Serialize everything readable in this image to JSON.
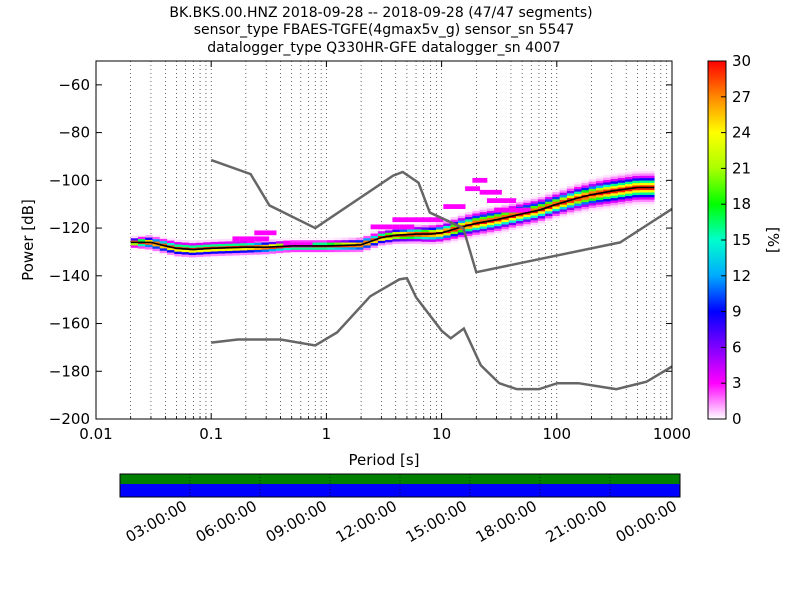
{
  "title_lines": [
    "BK.BKS.00.HNZ   2018-09-28 -- 2018-09-28  (47/47 segments)",
    "sensor_type FBAES-TGFE(4gmax5v_g) sensor_sn 5547",
    "datalogger_type Q330HR-GFE datalogger_sn 4007"
  ],
  "chart_data": {
    "type": "heatmap",
    "xlabel": "Period [s]",
    "ylabel": "Power [dB]",
    "xscale": "log",
    "xlim": [
      0.01,
      1000
    ],
    "ylim": [
      -200,
      -50
    ],
    "x_ticks": [
      0.01,
      0.1,
      1,
      10,
      100,
      1000
    ],
    "x_tick_labels": [
      "0.01",
      "0.1",
      "1",
      "10",
      "100",
      "1000"
    ],
    "y_ticks": [
      -200,
      -180,
      -160,
      -140,
      -120,
      -100,
      -80,
      -60
    ],
    "y_tick_labels": [
      "−200",
      "−180",
      "−160",
      "−140",
      "−120",
      "−100",
      "−80",
      "−60"
    ],
    "grid": "dotted-x",
    "colorbar": {
      "label": "[%]",
      "min": 0,
      "max": 30,
      "ticks": [
        0,
        3,
        6,
        9,
        12,
        15,
        18,
        21,
        24,
        27,
        30
      ],
      "tick_labels": [
        "0",
        "3",
        "6",
        "9",
        "12",
        "15",
        "18",
        "21",
        "24",
        "27",
        "30"
      ],
      "colors": [
        "#ffffff",
        "#ff00ff",
        "#8000ff",
        "#0000ff",
        "#00aaff",
        "#00ffcc",
        "#00ff00",
        "#aaff00",
        "#ffff00",
        "#ff8800",
        "#ff0000"
      ]
    },
    "noise_model_high": [
      [
        0.1,
        -91.5
      ],
      [
        0.22,
        -97.4
      ],
      [
        0.32,
        -110.5
      ],
      [
        0.8,
        -120
      ],
      [
        3.8,
        -98
      ],
      [
        4.6,
        -96.5
      ],
      [
        6.3,
        -101
      ],
      [
        7.9,
        -113.5
      ],
      [
        15.4,
        -120
      ],
      [
        20,
        -138.5
      ],
      [
        354.8,
        -126
      ],
      [
        1000,
        -112
      ]
    ],
    "noise_model_low": [
      [
        0.1,
        -168
      ],
      [
        0.17,
        -166.7
      ],
      [
        0.4,
        -166.7
      ],
      [
        0.8,
        -169.2
      ],
      [
        1.24,
        -163.7
      ],
      [
        2.4,
        -148.6
      ],
      [
        4.3,
        -141.5
      ],
      [
        5,
        -141
      ],
      [
        6,
        -149
      ],
      [
        10,
        -163
      ],
      [
        12,
        -166.2
      ],
      [
        15.6,
        -162.1
      ],
      [
        21.9,
        -177.5
      ],
      [
        31.6,
        -185
      ],
      [
        45,
        -187.5
      ],
      [
        70,
        -187.5
      ],
      [
        101,
        -185
      ],
      [
        154,
        -185
      ],
      [
        328,
        -187.5
      ],
      [
        600,
        -184.4
      ],
      [
        1000,
        -178
      ]
    ],
    "psd_mode": [
      [
        0.02,
        -126
      ],
      [
        0.03,
        -126
      ],
      [
        0.04,
        -127.5
      ],
      [
        0.05,
        -128.5
      ],
      [
        0.07,
        -129
      ],
      [
        0.1,
        -128.5
      ],
      [
        0.2,
        -128
      ],
      [
        0.3,
        -128
      ],
      [
        0.5,
        -127.5
      ],
      [
        1,
        -127.5
      ],
      [
        2,
        -127
      ],
      [
        3,
        -124
      ],
      [
        4,
        -123
      ],
      [
        6,
        -122.5
      ],
      [
        8,
        -122.5
      ],
      [
        10,
        -122
      ],
      [
        15,
        -119.5
      ],
      [
        20,
        -118
      ],
      [
        30,
        -116.5
      ],
      [
        50,
        -114
      ],
      [
        70,
        -112.5
      ],
      [
        100,
        -110
      ],
      [
        150,
        -107.5
      ],
      [
        200,
        -106
      ],
      [
        300,
        -104.5
      ],
      [
        500,
        -103
      ],
      [
        700,
        -103
      ]
    ],
    "psd_spread": [
      [
        0.02,
        1
      ],
      [
        0.03,
        1.4
      ],
      [
        0.05,
        1.5
      ],
      [
        0.1,
        1.5
      ],
      [
        0.2,
        1.5
      ],
      [
        0.5,
        1.2
      ],
      [
        1,
        1.2
      ],
      [
        3,
        1.5
      ],
      [
        10,
        2
      ],
      [
        20,
        2.5
      ],
      [
        50,
        2.5
      ],
      [
        100,
        2.5
      ],
      [
        300,
        3
      ],
      [
        700,
        3
      ]
    ],
    "psd_outliers": [
      [
        0.15,
        0.3,
        -124.5
      ],
      [
        0.22,
        0.35,
        -122
      ],
      [
        0.45,
        0.8,
        -127
      ],
      [
        2.5,
        6,
        -119.5
      ],
      [
        4,
        10,
        -116.5
      ],
      [
        10,
        17,
        -111
      ],
      [
        17,
        22,
        -103.5
      ],
      [
        19,
        25,
        -100
      ],
      [
        22,
        35,
        -105
      ],
      [
        25,
        45,
        -108.5
      ],
      [
        30,
        60,
        -112.5
      ]
    ],
    "timeline": {
      "tick_labels": [
        "03:00:00",
        "06:00:00",
        "09:00:00",
        "12:00:00",
        "15:00:00",
        "18:00:00",
        "21:00:00",
        "00:00:00"
      ],
      "data_coverage_color": "#008000",
      "psd_coverage_color": "#0000ff"
    }
  }
}
